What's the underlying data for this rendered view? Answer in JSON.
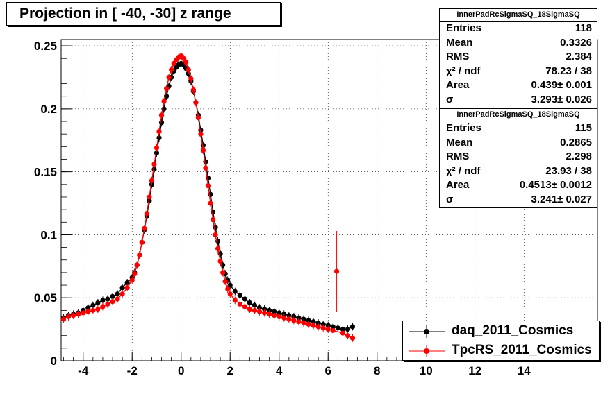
{
  "title": "Projection in [ -40, -30] z range",
  "stats_boxes": [
    {
      "name": "InnerPadRcSigmaSQ_18SigmaSQ",
      "rows": [
        {
          "key": "Entries",
          "value": "118"
        },
        {
          "key": "Mean",
          "value": "0.3326"
        },
        {
          "key": "RMS",
          "value": "2.384"
        },
        {
          "key": "χ² / ndf",
          "value": "78.23 / 38"
        },
        {
          "key": "Area",
          "value": "0.439± 0.001"
        },
        {
          "key": "σ",
          "value": "3.293± 0.026"
        }
      ]
    },
    {
      "name": "InnerPadRcSigmaSQ_18SigmaSQ",
      "rows": [
        {
          "key": "Entries",
          "value": "115"
        },
        {
          "key": "Mean",
          "value": "0.2865"
        },
        {
          "key": "RMS",
          "value": "2.298"
        },
        {
          "key": "χ² / ndf",
          "value": "23.93 / 38"
        },
        {
          "key": "Area",
          "value": "0.4513± 0.0012"
        },
        {
          "key": "σ",
          "value": "3.241± 0.027"
        }
      ]
    }
  ],
  "legend": [
    {
      "label": "daq_2011_Cosmics",
      "color": "#000000"
    },
    {
      "label": "TpcRS_2011_Cosmics",
      "color": "#ff0000"
    }
  ],
  "chart_data": {
    "type": "scatter",
    "title": "Projection in [ -40, -30] z range",
    "xlim": [
      -4.9,
      17
    ],
    "ylim": [
      0,
      0.255
    ],
    "grid": true,
    "legend_position": "bottom-right",
    "x_ticks": [
      "-4",
      "-2",
      "0",
      "2",
      "4",
      "6",
      "8",
      "10",
      "12",
      "14"
    ],
    "x_tick_values": [
      -4,
      -2,
      0,
      2,
      4,
      6,
      8,
      10,
      12,
      14
    ],
    "y_ticks": [
      "0",
      "0.05",
      "0.1",
      "0.15",
      "0.2",
      "0.25"
    ],
    "y_tick_values": [
      0,
      0.05,
      0.1,
      0.15,
      0.2,
      0.25
    ],
    "series": [
      {
        "name": "daq_2011_Cosmics",
        "color": "#000000",
        "x": [
          -4.8,
          -4.6,
          -4.4,
          -4.2,
          -4.0,
          -3.8,
          -3.6,
          -3.4,
          -3.2,
          -3.0,
          -2.8,
          -2.6,
          -2.4,
          -2.2,
          -2.0,
          -1.9,
          -1.8,
          -1.7,
          -1.6,
          -1.5,
          -1.4,
          -1.3,
          -1.2,
          -1.1,
          -1.0,
          -0.9,
          -0.8,
          -0.7,
          -0.6,
          -0.5,
          -0.4,
          -0.3,
          -0.2,
          -0.1,
          0.0,
          0.1,
          0.2,
          0.3,
          0.4,
          0.5,
          0.6,
          0.7,
          0.8,
          0.9,
          1.0,
          1.1,
          1.2,
          1.3,
          1.4,
          1.5,
          1.6,
          1.7,
          1.8,
          1.9,
          2.0,
          2.2,
          2.4,
          2.6,
          2.8,
          3.0,
          3.2,
          3.4,
          3.6,
          3.8,
          4.0,
          4.2,
          4.4,
          4.6,
          4.8,
          5.0,
          5.2,
          5.4,
          5.6,
          5.8,
          6.0,
          6.2,
          6.4,
          6.6,
          6.8,
          7.0
        ],
        "y": [
          0.034,
          0.036,
          0.037,
          0.038,
          0.04,
          0.042,
          0.044,
          0.046,
          0.048,
          0.049,
          0.051,
          0.053,
          0.058,
          0.062,
          0.066,
          0.07,
          0.076,
          0.084,
          0.094,
          0.104,
          0.115,
          0.127,
          0.14,
          0.152,
          0.165,
          0.177,
          0.189,
          0.2,
          0.21,
          0.218,
          0.225,
          0.23,
          0.233,
          0.235,
          0.236,
          0.235,
          0.232,
          0.228,
          0.222,
          0.214,
          0.205,
          0.195,
          0.183,
          0.171,
          0.158,
          0.145,
          0.132,
          0.118,
          0.106,
          0.095,
          0.085,
          0.076,
          0.069,
          0.064,
          0.06,
          0.055,
          0.052,
          0.049,
          0.046,
          0.044,
          0.042,
          0.041,
          0.04,
          0.039,
          0.038,
          0.037,
          0.036,
          0.035,
          0.034,
          0.033,
          0.032,
          0.031,
          0.03,
          0.029,
          0.028,
          0.027,
          0.026,
          0.025,
          0.025,
          0.027
        ]
      },
      {
        "name": "TpcRS_2011_Cosmics",
        "color": "#ff0000",
        "x": [
          -4.8,
          -4.6,
          -4.4,
          -4.2,
          -4.0,
          -3.8,
          -3.6,
          -3.4,
          -3.2,
          -3.0,
          -2.8,
          -2.6,
          -2.4,
          -2.2,
          -2.0,
          -1.9,
          -1.8,
          -1.7,
          -1.6,
          -1.5,
          -1.4,
          -1.3,
          -1.2,
          -1.1,
          -1.0,
          -0.9,
          -0.8,
          -0.7,
          -0.6,
          -0.5,
          -0.4,
          -0.3,
          -0.2,
          -0.1,
          0.0,
          0.1,
          0.2,
          0.3,
          0.4,
          0.5,
          0.6,
          0.7,
          0.8,
          0.9,
          1.0,
          1.1,
          1.2,
          1.3,
          1.4,
          1.5,
          1.6,
          1.7,
          1.8,
          1.9,
          2.0,
          2.2,
          2.4,
          2.6,
          2.8,
          3.0,
          3.2,
          3.4,
          3.6,
          3.8,
          4.0,
          4.2,
          4.4,
          4.6,
          4.8,
          5.0,
          5.2,
          5.4,
          5.6,
          5.8,
          6.0,
          6.2,
          6.35,
          6.6,
          6.8,
          7.0
        ],
        "y": [
          0.033,
          0.035,
          0.036,
          0.037,
          0.038,
          0.039,
          0.04,
          0.041,
          0.043,
          0.045,
          0.047,
          0.049,
          0.053,
          0.058,
          0.064,
          0.069,
          0.076,
          0.084,
          0.094,
          0.105,
          0.117,
          0.13,
          0.143,
          0.156,
          0.169,
          0.182,
          0.195,
          0.206,
          0.216,
          0.225,
          0.231,
          0.236,
          0.239,
          0.241,
          0.242,
          0.24,
          0.237,
          0.231,
          0.224,
          0.215,
          0.205,
          0.193,
          0.18,
          0.167,
          0.153,
          0.139,
          0.125,
          0.112,
          0.1,
          0.089,
          0.079,
          0.07,
          0.063,
          0.057,
          0.053,
          0.048,
          0.045,
          0.043,
          0.041,
          0.04,
          0.039,
          0.038,
          0.037,
          0.036,
          0.035,
          0.034,
          0.033,
          0.032,
          0.031,
          0.03,
          0.029,
          0.028,
          0.027,
          0.026,
          0.025,
          0.024,
          0.071,
          0.022,
          0.02,
          0.018
        ],
        "y_err": [
          0.003,
          0.003,
          0.003,
          0.003,
          0.003,
          0.003,
          0.003,
          0.003,
          0.003,
          0.003,
          0.003,
          0.003,
          0.003,
          0.003,
          0.003,
          0.003,
          0.003,
          0.003,
          0.003,
          0.003,
          0.003,
          0.003,
          0.003,
          0.003,
          0.003,
          0.003,
          0.003,
          0.003,
          0.003,
          0.003,
          0.003,
          0.003,
          0.003,
          0.003,
          0.003,
          0.003,
          0.003,
          0.003,
          0.003,
          0.003,
          0.003,
          0.003,
          0.003,
          0.003,
          0.003,
          0.003,
          0.003,
          0.003,
          0.003,
          0.003,
          0.003,
          0.003,
          0.003,
          0.003,
          0.003,
          0.003,
          0.003,
          0.003,
          0.003,
          0.003,
          0.003,
          0.003,
          0.003,
          0.003,
          0.003,
          0.003,
          0.003,
          0.003,
          0.003,
          0.003,
          0.003,
          0.003,
          0.003,
          0.003,
          0.003,
          0.003,
          0.032,
          0.003,
          0.003,
          0.003
        ]
      }
    ]
  }
}
